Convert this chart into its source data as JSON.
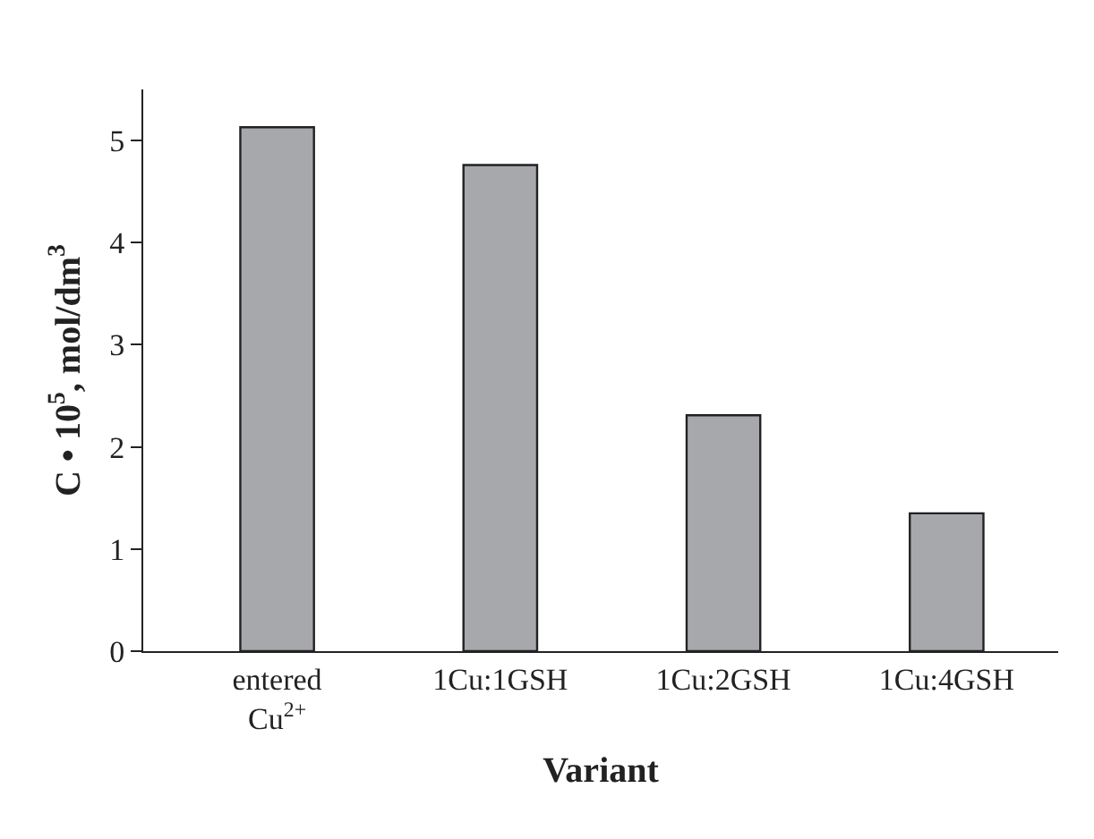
{
  "chart_data": {
    "type": "bar",
    "xlabel": "Variant",
    "ylabel": "C • 10$^{5}$, mol/dm$^{3}$",
    "categories": [
      "entered\nCu$^{2+}$",
      "1Cu:1GSH",
      "1Cu:2GSH",
      "1Cu:4GSH"
    ],
    "values": [
      5.13,
      4.76,
      2.31,
      1.35
    ],
    "color": "#a7a8ac",
    "ylim": [
      0,
      5.5
    ],
    "yticks": [
      0,
      1,
      2,
      3,
      4,
      5
    ]
  }
}
